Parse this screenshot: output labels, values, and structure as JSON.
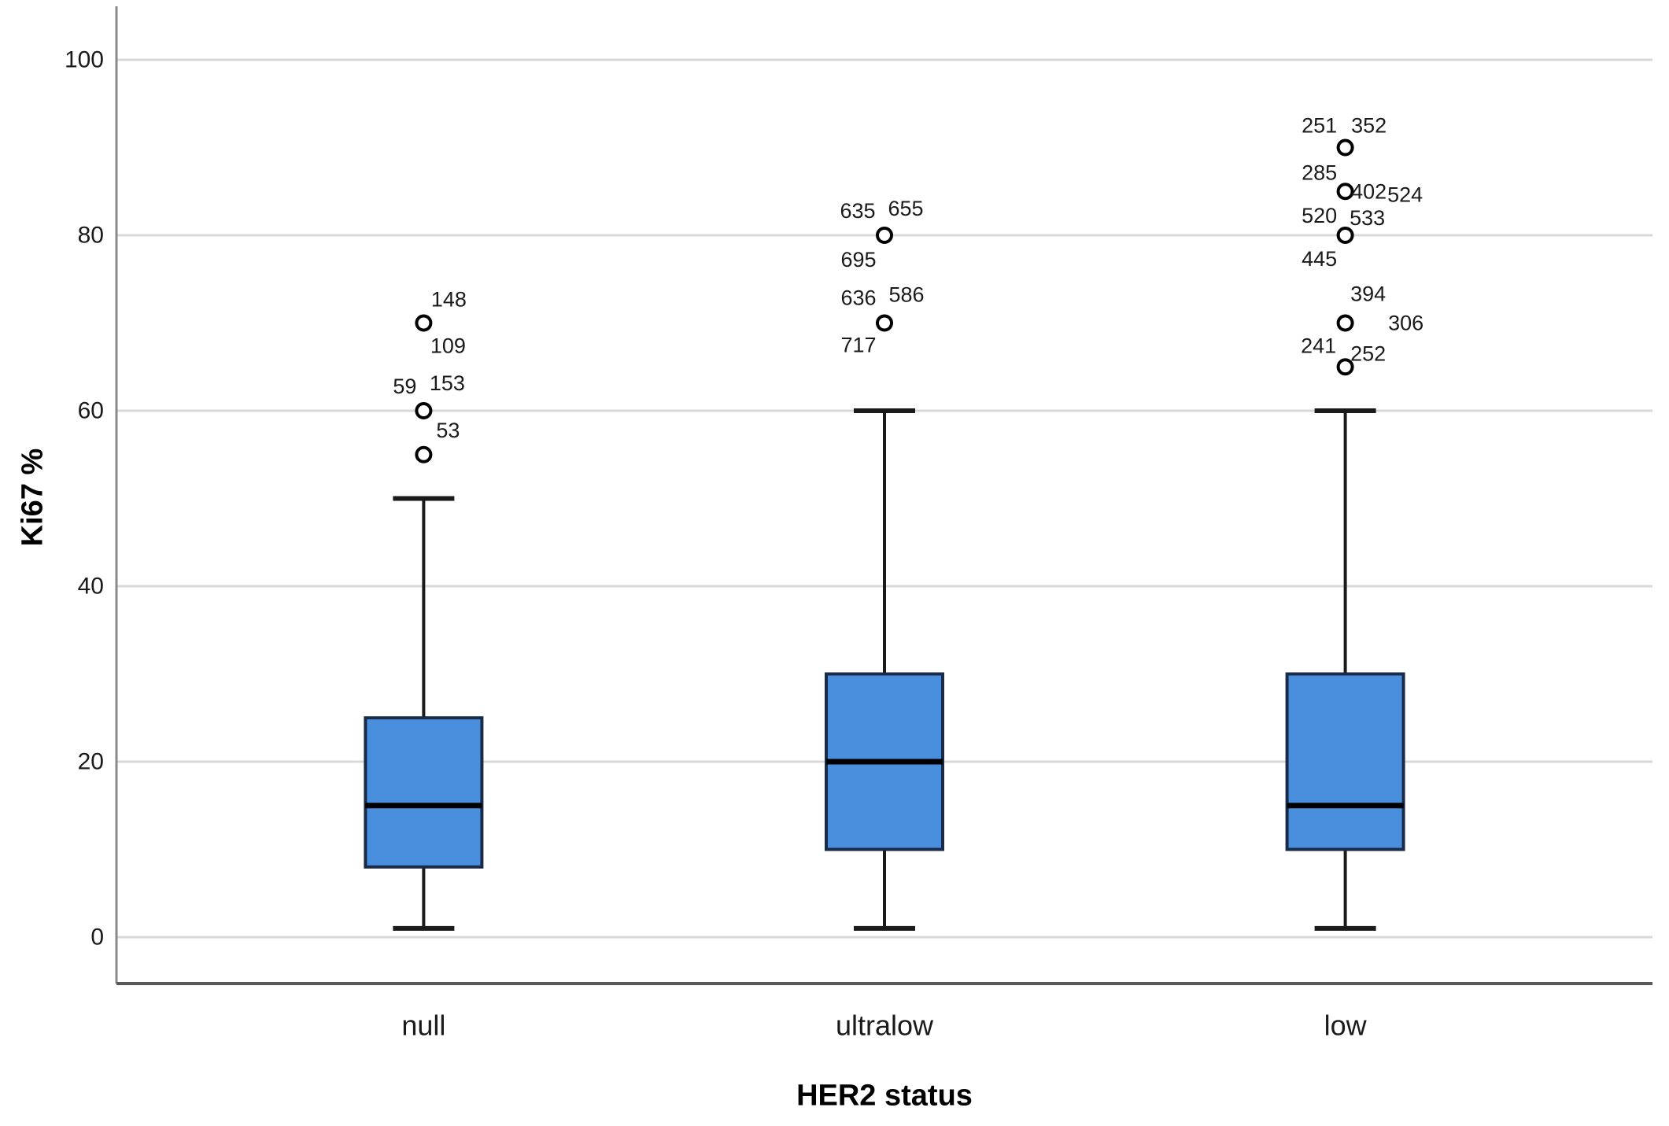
{
  "chart_data": {
    "type": "box",
    "xlabel": "HER2 status",
    "ylabel": "Ki67 %",
    "ylim": [
      0,
      100
    ],
    "yticks": [
      0,
      20,
      40,
      60,
      80,
      100
    ],
    "grid": "horizontal",
    "legend": "none",
    "categories": [
      "null",
      "ultralow",
      "low"
    ],
    "series": [
      {
        "category": "null",
        "whisker_low": 1,
        "q1": 8,
        "median": 15,
        "q3": 25,
        "whisker_high": 50,
        "outliers": [
          {
            "value": 55,
            "labels": [
              {
                "text": "53",
                "dx": 31,
                "dy": -31
              }
            ]
          },
          {
            "value": 60,
            "labels": [
              {
                "text": "59",
                "dx": -24,
                "dy": -31
              },
              {
                "text": "153",
                "dx": 30,
                "dy": -35
              }
            ]
          },
          {
            "value": 70,
            "labels": [
              {
                "text": "148",
                "dx": 32,
                "dy": -30
              },
              {
                "text": "109",
                "dx": 31,
                "dy": 29
              }
            ]
          }
        ]
      },
      {
        "category": "ultralow",
        "whisker_low": 1,
        "q1": 10,
        "median": 20,
        "q3": 30,
        "whisker_high": 60,
        "outliers": [
          {
            "value": 70,
            "labels": [
              {
                "text": "636",
                "dx": -33,
                "dy": -32
              },
              {
                "text": "586",
                "dx": 28,
                "dy": -36
              },
              {
                "text": "717",
                "dx": -33,
                "dy": 28
              }
            ]
          },
          {
            "value": 80,
            "labels": [
              {
                "text": "635",
                "dx": -34,
                "dy": -31
              },
              {
                "text": "655",
                "dx": 27,
                "dy": -34
              },
              {
                "text": "695",
                "dx": -33,
                "dy": 31
              }
            ]
          }
        ]
      },
      {
        "category": "low",
        "whisker_low": 1,
        "q1": 10,
        "median": 15,
        "q3": 30,
        "whisker_high": 60,
        "outliers": [
          {
            "value": 65,
            "labels": [
              {
                "text": "241",
                "dx": -34,
                "dy": -27
              },
              {
                "text": "252",
                "dx": 29,
                "dy": -17
              }
            ]
          },
          {
            "value": 70,
            "labels": [
              {
                "text": "394",
                "dx": 29,
                "dy": -37
              },
              {
                "text": "306",
                "dx": 77,
                "dy": 0
              }
            ]
          },
          {
            "value": 80,
            "labels": [
              {
                "text": "520",
                "dx": -33,
                "dy": -25
              },
              {
                "text": "533",
                "dx": 28,
                "dy": -22
              },
              {
                "text": "445",
                "dx": -33,
                "dy": 30
              }
            ]
          },
          {
            "value": 85,
            "labels": [
              {
                "text": "285",
                "dx": -33,
                "dy": -24
              },
              {
                "text": "402",
                "dx": 30,
                "dy": 0
              },
              {
                "text": "524",
                "dx": 76,
                "dy": 4
              }
            ]
          },
          {
            "value": 90,
            "labels": [
              {
                "text": "251",
                "dx": -33,
                "dy": -28
              },
              {
                "text": "352",
                "dx": 30,
                "dy": -28
              }
            ]
          }
        ]
      }
    ],
    "colors": {
      "box_fill": "#4a8ede",
      "box_border": "#1a2b49",
      "median": "#000000",
      "whisker": "#1a1a1a",
      "gridline": "#d8d8d8",
      "axis_line_left": "#8a8a8a",
      "axis_line_bottom": "#595959",
      "outlier_ring": "#000000",
      "text": "#1a1a1a"
    }
  }
}
